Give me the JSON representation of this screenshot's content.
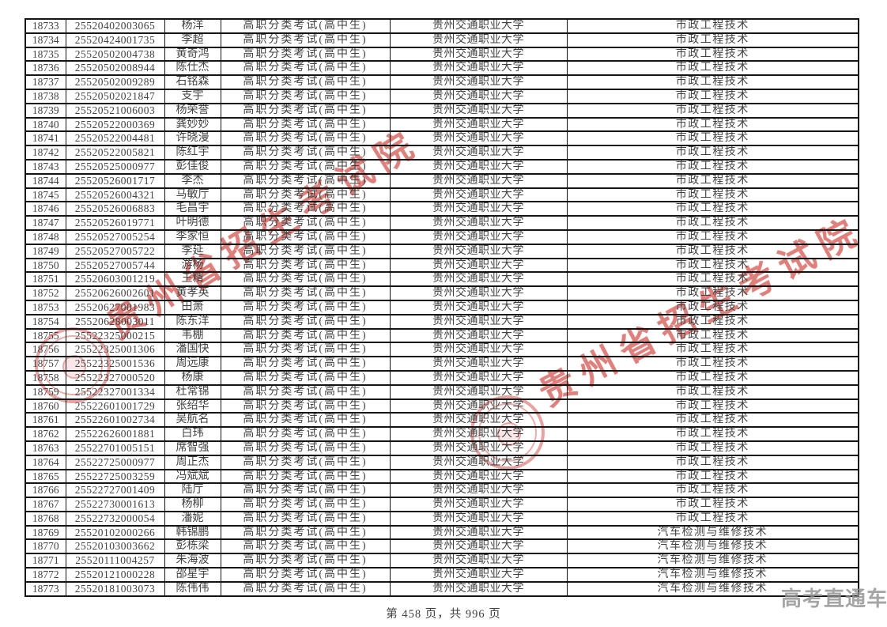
{
  "watermark": {
    "text": "贵州省招生考试院",
    "color": "#ca342e"
  },
  "brand": {
    "text": "高考直通车"
  },
  "footer": {
    "text": "第 458 页，共 996 页"
  },
  "table": {
    "rows": [
      [
        "18733",
        "25520402003065",
        "杨洋",
        "高职分类考试(高中生)",
        "贵州交通职业大学",
        "市政工程技术"
      ],
      [
        "18734",
        "25520424001735",
        "李超",
        "高职分类考试(高中生)",
        "贵州交通职业大学",
        "市政工程技术"
      ],
      [
        "18735",
        "25520502004738",
        "黄奇鸿",
        "高职分类考试(高中生)",
        "贵州交通职业大学",
        "市政工程技术"
      ],
      [
        "18736",
        "25520502008944",
        "陈仕杰",
        "高职分类考试(高中生)",
        "贵州交通职业大学",
        "市政工程技术"
      ],
      [
        "18737",
        "25520502009289",
        "石铭森",
        "高职分类考试(高中生)",
        "贵州交通职业大学",
        "市政工程技术"
      ],
      [
        "18738",
        "25520502021847",
        "支宇",
        "高职分类考试(高中生)",
        "贵州交通职业大学",
        "市政工程技术"
      ],
      [
        "18739",
        "25520521006003",
        "杨荣誉",
        "高职分类考试(高中生)",
        "贵州交通职业大学",
        "市政工程技术"
      ],
      [
        "18740",
        "25520522000369",
        "龚妙妙",
        "高职分类考试(高中生)",
        "贵州交通职业大学",
        "市政工程技术"
      ],
      [
        "18741",
        "25520522004481",
        "许晓漫",
        "高职分类考试(高中生)",
        "贵州交通职业大学",
        "市政工程技术"
      ],
      [
        "18742",
        "25520522005821",
        "陈红宇",
        "高职分类考试(高中生)",
        "贵州交通职业大学",
        "市政工程技术"
      ],
      [
        "18743",
        "25520525000977",
        "彭佳俊",
        "高职分类考试(高中生)",
        "贵州交通职业大学",
        "市政工程技术"
      ],
      [
        "18744",
        "25520526001717",
        "李杰",
        "高职分类考试(高中生)",
        "贵州交通职业大学",
        "市政工程技术"
      ],
      [
        "18745",
        "25520526004321",
        "马敏厅",
        "高职分类考试(高中生)",
        "贵州交通职业大学",
        "市政工程技术"
      ],
      [
        "18746",
        "25520526006883",
        "毛昌宇",
        "高职分类考试(高中生)",
        "贵州交通职业大学",
        "市政工程技术"
      ],
      [
        "18747",
        "25520526019771",
        "叶明德",
        "高职分类考试(高中生)",
        "贵州交通职业大学",
        "市政工程技术"
      ],
      [
        "18748",
        "25520527005254",
        "李家恒",
        "高职分类考试(高中生)",
        "贵州交通职业大学",
        "市政工程技术"
      ],
      [
        "18749",
        "25520527005722",
        "李延",
        "高职分类考试(高中生)",
        "贵州交通职业大学",
        "市政工程技术"
      ],
      [
        "18750",
        "25520527005744",
        "游杨",
        "高职分类考试(高中生)",
        "贵州交通职业大学",
        "市政工程技术"
      ],
      [
        "18751",
        "25520603001219",
        "王糈",
        "高职分类考试(高中生)",
        "贵州交通职业大学",
        "市政工程技术"
      ],
      [
        "18752",
        "25520626002601",
        "黄孝英",
        "高职分类考试(高中生)",
        "贵州交通职业大学",
        "市政工程技术"
      ],
      [
        "18753",
        "25520627001983",
        "田萧",
        "高职分类考试(高中生)",
        "贵州交通职业大学",
        "市政工程技术"
      ],
      [
        "18754",
        "25520628003011",
        "陈东洋",
        "高职分类考试(高中生)",
        "贵州交通职业大学",
        "市政工程技术"
      ],
      [
        "18755",
        "25522325000215",
        "韦棚",
        "高职分类考试(高中生)",
        "贵州交通职业大学",
        "市政工程技术"
      ],
      [
        "18756",
        "25522325001306",
        "潘国快",
        "高职分类考试(高中生)",
        "贵州交通职业大学",
        "市政工程技术"
      ],
      [
        "18757",
        "25522325001536",
        "周远康",
        "高职分类考试(高中生)",
        "贵州交通职业大学",
        "市政工程技术"
      ],
      [
        "18758",
        "25522327000520",
        "杨康",
        "高职分类考试(高中生)",
        "贵州交通职业大学",
        "市政工程技术"
      ],
      [
        "18759",
        "25522327001334",
        "杜常锦",
        "高职分类考试(高中生)",
        "贵州交通职业大学",
        "市政工程技术"
      ],
      [
        "18760",
        "25522601001729",
        "张绍华",
        "高职分类考试(高中生)",
        "贵州交通职业大学",
        "市政工程技术"
      ],
      [
        "18761",
        "25522601002734",
        "吴航名",
        "高职分类考试(高中生)",
        "贵州交通职业大学",
        "市政工程技术"
      ],
      [
        "18762",
        "25522626001881",
        "白玮",
        "高职分类考试(高中生)",
        "贵州交通职业大学",
        "市政工程技术"
      ],
      [
        "18763",
        "25522701005151",
        "席智强",
        "高职分类考试(高中生)",
        "贵州交通职业大学",
        "市政工程技术"
      ],
      [
        "18764",
        "25522725000977",
        "周正杰",
        "高职分类考试(高中生)",
        "贵州交通职业大学",
        "市政工程技术"
      ],
      [
        "18765",
        "25522725003259",
        "冯斌斌",
        "高职分类考试(高中生)",
        "贵州交通职业大学",
        "市政工程技术"
      ],
      [
        "18766",
        "25522727001409",
        "陆厅",
        "高职分类考试(高中生)",
        "贵州交通职业大学",
        "市政工程技术"
      ],
      [
        "18767",
        "25522730001613",
        "杨柳",
        "高职分类考试(高中生)",
        "贵州交通职业大学",
        "市政工程技术"
      ],
      [
        "18768",
        "25522732000054",
        "潘妮",
        "高职分类考试(高中生)",
        "贵州交通职业大学",
        "市政工程技术"
      ],
      [
        "18769",
        "25520102000266",
        "韩锦鹏",
        "高职分类考试(高中生)",
        "贵州交通职业大学",
        "汽车检测与维修技术"
      ],
      [
        "18770",
        "25520103003662",
        "彭栋梁",
        "高职分类考试(高中生)",
        "贵州交通职业大学",
        "汽车检测与维修技术"
      ],
      [
        "18771",
        "25520111004257",
        "朱海波",
        "高职分类考试(高中生)",
        "贵州交通职业大学",
        "汽车检测与维修技术"
      ],
      [
        "18772",
        "25520121000228",
        "邵星宇",
        "高职分类考试(高中生)",
        "贵州交通职业大学",
        "汽车检测与维修技术"
      ],
      [
        "18773",
        "25520181003073",
        "陈伟伟",
        "高职分类考试(高中生)",
        "贵州交通职业大学",
        "汽车检测与维修技术"
      ]
    ]
  }
}
